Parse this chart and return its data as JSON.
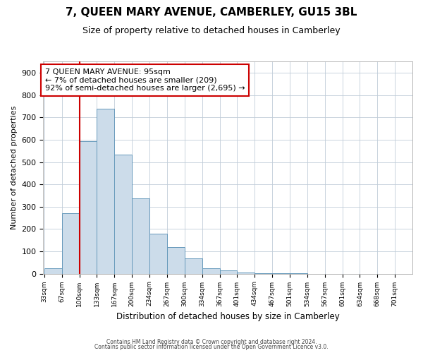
{
  "title": "7, QUEEN MARY AVENUE, CAMBERLEY, GU15 3BL",
  "subtitle": "Size of property relative to detached houses in Camberley",
  "xlabel": "Distribution of detached houses by size in Camberley",
  "ylabel": "Number of detached properties",
  "bar_values": [
    25,
    270,
    595,
    740,
    535,
    338,
    180,
    120,
    68,
    25,
    15,
    5,
    3,
    2,
    1,
    0,
    0,
    0,
    0,
    0
  ],
  "bar_labels": [
    "33sqm",
    "67sqm",
    "100sqm",
    "133sqm",
    "167sqm",
    "200sqm",
    "234sqm",
    "267sqm",
    "300sqm",
    "334sqm",
    "367sqm",
    "401sqm",
    "434sqm",
    "467sqm",
    "501sqm",
    "534sqm",
    "567sqm",
    "601sqm",
    "634sqm",
    "668sqm",
    "701sqm"
  ],
  "bar_color": "#ccdcea",
  "bar_edge_color": "#6699bb",
  "annotation_title": "7 QUEEN MARY AVENUE: 95sqm",
  "annotation_line1": "← 7% of detached houses are smaller (209)",
  "annotation_line2": "92% of semi-detached houses are larger (2,695) →",
  "vline_color": "#cc0000",
  "annotation_box_color": "#ffffff",
  "annotation_box_edge": "#cc0000",
  "ylim": [
    0,
    950
  ],
  "yticks": [
    0,
    100,
    200,
    300,
    400,
    500,
    600,
    700,
    800,
    900
  ],
  "footer1": "Contains HM Land Registry data © Crown copyright and database right 2024.",
  "footer2": "Contains public sector information licensed under the Open Government Licence v3.0.",
  "background_color": "#ffffff",
  "grid_color": "#c0ccd8",
  "vline_x_bin": 2
}
